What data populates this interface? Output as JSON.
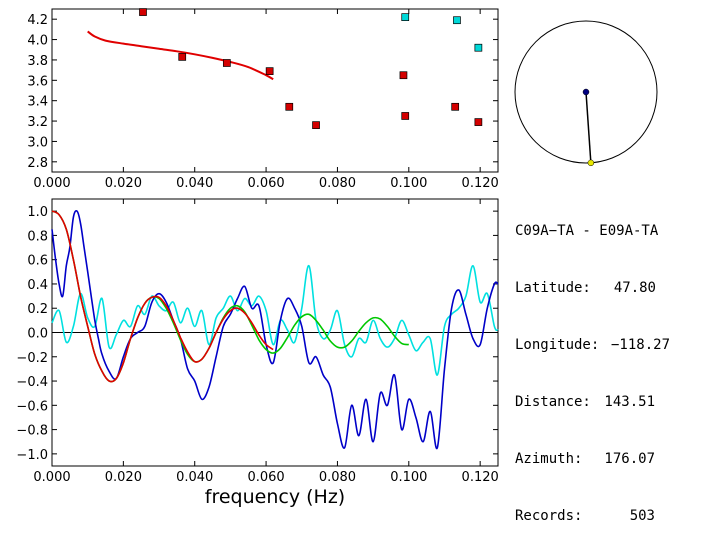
{
  "station_pair": "C09A-TA - E09A-TA",
  "info": [
    {
      "key": "Latitude:",
      "value": "47.80"
    },
    {
      "key": "Longitude:",
      "value": "-118.27"
    },
    {
      "key": "Distance:",
      "value": "143.51"
    },
    {
      "key": "Azimuth:",
      "value": "176.07"
    },
    {
      "key": "Records:",
      "value": "503"
    }
  ],
  "colors": {
    "red": "#e00000",
    "blue": "#0000c8",
    "cyan": "#00e0e0",
    "green": "#00c800",
    "marker_red": "#d40000",
    "marker_cyan": "#00d8d8",
    "yellow": "#e8e800",
    "navy": "#000080"
  },
  "chart_data": [
    {
      "type": "scatter",
      "xlim": [
        0.0,
        0.125
      ],
      "ylim": [
        2.7,
        4.3
      ],
      "x_ticks": [
        "0.000",
        "0.020",
        "0.040",
        "0.060",
        "0.080",
        "0.100",
        "0.120"
      ],
      "x_tick_values": [
        0.0,
        0.02,
        0.04,
        0.06,
        0.08,
        0.1,
        0.12
      ],
      "y_ticks": [
        "2.8",
        "3.0",
        "3.2",
        "3.4",
        "3.6",
        "3.8",
        "4.0",
        "4.2"
      ],
      "y_tick_values": [
        2.8,
        3.0,
        3.2,
        3.4,
        3.6,
        3.8,
        4.0,
        4.2
      ],
      "points_red": [
        {
          "x": 0.0255,
          "y": 4.27
        },
        {
          "x": 0.0365,
          "y": 3.83
        },
        {
          "x": 0.049,
          "y": 3.77
        },
        {
          "x": 0.061,
          "y": 3.69
        },
        {
          "x": 0.0665,
          "y": 3.34
        },
        {
          "x": 0.074,
          "y": 3.16
        },
        {
          "x": 0.0985,
          "y": 3.65
        },
        {
          "x": 0.099,
          "y": 3.25
        },
        {
          "x": 0.113,
          "y": 3.34
        },
        {
          "x": 0.1195,
          "y": 3.19
        }
      ],
      "points_cyan": [
        {
          "x": 0.099,
          "y": 4.22
        },
        {
          "x": 0.1135,
          "y": 4.19
        },
        {
          "x": 0.1195,
          "y": 3.92
        }
      ],
      "fit_curve": {
        "x": [
          0.01,
          0.012,
          0.015,
          0.02,
          0.025,
          0.03,
          0.035,
          0.04,
          0.045,
          0.05,
          0.055,
          0.06,
          0.062
        ],
        "y": [
          4.08,
          4.03,
          3.99,
          3.96,
          3.935,
          3.91,
          3.885,
          3.855,
          3.82,
          3.78,
          3.73,
          3.65,
          3.61
        ]
      }
    },
    {
      "type": "line",
      "xlim": [
        0.0,
        0.125
      ],
      "ylim": [
        -1.1,
        1.1
      ],
      "x_ticks": [
        "0.000",
        "0.020",
        "0.040",
        "0.060",
        "0.080",
        "0.100",
        "0.120"
      ],
      "x_tick_values": [
        0.0,
        0.02,
        0.04,
        0.06,
        0.08,
        0.1,
        0.12
      ],
      "y_ticks": [
        "1.0",
        "0.8",
        "0.6",
        "0.4",
        "0.2",
        "0.0",
        "-0.2",
        "-0.4",
        "-0.6",
        "-0.8",
        "-1.0"
      ],
      "y_tick_values": [
        1.0,
        0.8,
        0.6,
        0.4,
        0.2,
        0.0,
        -0.2,
        -0.4,
        -0.6,
        -0.8,
        -1.0
      ],
      "xlabel": "frequency (Hz)",
      "series": [
        {
          "color_key": "cyan",
          "x": [
            0.0,
            0.002,
            0.004,
            0.006,
            0.008,
            0.01,
            0.012,
            0.014,
            0.016,
            0.018,
            0.02,
            0.022,
            0.024,
            0.026,
            0.028,
            0.03,
            0.032,
            0.034,
            0.036,
            0.038,
            0.04,
            0.042,
            0.044,
            0.046,
            0.048,
            0.05,
            0.052,
            0.054,
            0.056,
            0.058,
            0.06,
            0.062,
            0.064,
            0.066,
            0.068,
            0.07,
            0.072,
            0.074,
            0.076,
            0.078,
            0.08,
            0.082,
            0.084,
            0.086,
            0.088,
            0.09,
            0.092,
            0.094,
            0.096,
            0.098,
            0.1,
            0.102,
            0.104,
            0.106,
            0.108,
            0.11,
            0.112,
            0.114,
            0.116,
            0.118,
            0.12,
            0.122,
            0.124,
            0.125
          ],
          "y": [
            0.08,
            0.18,
            -0.08,
            0.05,
            0.32,
            0.12,
            0.05,
            0.28,
            -0.12,
            -0.02,
            0.1,
            0.05,
            0.22,
            0.15,
            0.3,
            0.22,
            0.18,
            0.25,
            0.08,
            0.2,
            0.05,
            0.18,
            -0.1,
            0.12,
            0.2,
            0.3,
            0.18,
            0.28,
            0.22,
            0.3,
            0.18,
            -0.1,
            0.1,
            0.02,
            -0.08,
            0.2,
            0.55,
            0.1,
            -0.05,
            0.02,
            0.18,
            -0.1,
            -0.2,
            -0.05,
            -0.08,
            0.1,
            -0.05,
            -0.12,
            -0.05,
            0.1,
            -0.02,
            -0.15,
            -0.08,
            -0.05,
            -0.35,
            0.05,
            0.15,
            0.2,
            0.3,
            0.55,
            0.25,
            0.32,
            0.05,
            0.02
          ]
        },
        {
          "color_key": "blue",
          "x": [
            0.0,
            0.001,
            0.002,
            0.003,
            0.004,
            0.005,
            0.006,
            0.007,
            0.008,
            0.009,
            0.01,
            0.011,
            0.012,
            0.013,
            0.014,
            0.016,
            0.018,
            0.02,
            0.022,
            0.024,
            0.026,
            0.028,
            0.03,
            0.032,
            0.034,
            0.036,
            0.038,
            0.04,
            0.042,
            0.044,
            0.046,
            0.048,
            0.05,
            0.052,
            0.054,
            0.056,
            0.058,
            0.06,
            0.062,
            0.064,
            0.066,
            0.068,
            0.07,
            0.072,
            0.074,
            0.076,
            0.078,
            0.08,
            0.082,
            0.084,
            0.086,
            0.088,
            0.09,
            0.092,
            0.094,
            0.096,
            0.098,
            0.1,
            0.102,
            0.104,
            0.106,
            0.108,
            0.11,
            0.112,
            0.114,
            0.116,
            0.118,
            0.12,
            0.122,
            0.124,
            0.125
          ],
          "y": [
            0.85,
            0.6,
            0.4,
            0.3,
            0.55,
            0.7,
            0.95,
            1.0,
            0.9,
            0.7,
            0.5,
            0.3,
            0.1,
            -0.05,
            -0.18,
            -0.32,
            -0.38,
            -0.2,
            -0.05,
            0.0,
            0.05,
            0.25,
            0.32,
            0.25,
            0.1,
            -0.05,
            -0.3,
            -0.4,
            -0.55,
            -0.45,
            -0.2,
            0.05,
            0.15,
            0.28,
            0.38,
            0.2,
            0.22,
            -0.1,
            -0.25,
            0.1,
            0.28,
            0.2,
            0.05,
            -0.25,
            -0.2,
            -0.35,
            -0.45,
            -0.75,
            -0.95,
            -0.6,
            -0.85,
            -0.55,
            -0.9,
            -0.5,
            -0.6,
            -0.35,
            -0.8,
            -0.55,
            -0.7,
            -0.9,
            -0.65,
            -0.95,
            -0.3,
            0.2,
            0.35,
            0.15,
            -0.05,
            -0.1,
            0.2,
            0.4,
            0.4
          ]
        },
        {
          "color_key": "green",
          "x": [
            0.0,
            0.002,
            0.004,
            0.006,
            0.008,
            0.01,
            0.012,
            0.014,
            0.016,
            0.018,
            0.02,
            0.022,
            0.024,
            0.026,
            0.028,
            0.03,
            0.032,
            0.034,
            0.036,
            0.038,
            0.04,
            0.042,
            0.044,
            0.046,
            0.048,
            0.05,
            0.052,
            0.054,
            0.056,
            0.058,
            0.06,
            0.062,
            0.064,
            0.066,
            0.068,
            0.07,
            0.072,
            0.074,
            0.076,
            0.078,
            0.08,
            0.082,
            0.084,
            0.086,
            0.088,
            0.09,
            0.092,
            0.094,
            0.096,
            0.098,
            0.1
          ],
          "y": [
            1.0,
            0.97,
            0.85,
            0.6,
            0.3,
            0.05,
            -0.18,
            -0.32,
            -0.4,
            -0.38,
            -0.25,
            -0.05,
            0.12,
            0.24,
            0.29,
            0.28,
            0.2,
            0.08,
            -0.06,
            -0.18,
            -0.24,
            -0.22,
            -0.13,
            0.0,
            0.12,
            0.2,
            0.22,
            0.17,
            0.06,
            -0.06,
            -0.14,
            -0.17,
            -0.13,
            -0.04,
            0.06,
            0.13,
            0.15,
            0.1,
            0.02,
            -0.07,
            -0.12,
            -0.12,
            -0.07,
            0.01,
            0.08,
            0.12,
            0.11,
            0.05,
            -0.03,
            -0.09,
            -0.1
          ]
        },
        {
          "color_key": "red",
          "x": [
            0.0,
            0.002,
            0.004,
            0.006,
            0.008,
            0.01,
            0.012,
            0.014,
            0.016,
            0.018,
            0.02,
            0.022,
            0.024,
            0.026,
            0.028,
            0.03,
            0.032,
            0.034,
            0.036,
            0.038,
            0.04,
            0.042,
            0.044,
            0.046,
            0.048,
            0.05,
            0.052,
            0.054,
            0.056,
            0.058,
            0.06,
            0.062
          ],
          "y": [
            1.0,
            0.97,
            0.85,
            0.6,
            0.3,
            0.05,
            -0.18,
            -0.32,
            -0.4,
            -0.38,
            -0.25,
            -0.05,
            0.12,
            0.24,
            0.29,
            0.29,
            0.22,
            0.1,
            -0.04,
            -0.16,
            -0.24,
            -0.22,
            -0.13,
            0.0,
            0.11,
            0.18,
            0.2,
            0.16,
            0.08,
            -0.02,
            -0.1,
            -0.14
          ]
        }
      ]
    }
  ],
  "azimuth_dial": {
    "azimuth_deg": 176.07
  }
}
